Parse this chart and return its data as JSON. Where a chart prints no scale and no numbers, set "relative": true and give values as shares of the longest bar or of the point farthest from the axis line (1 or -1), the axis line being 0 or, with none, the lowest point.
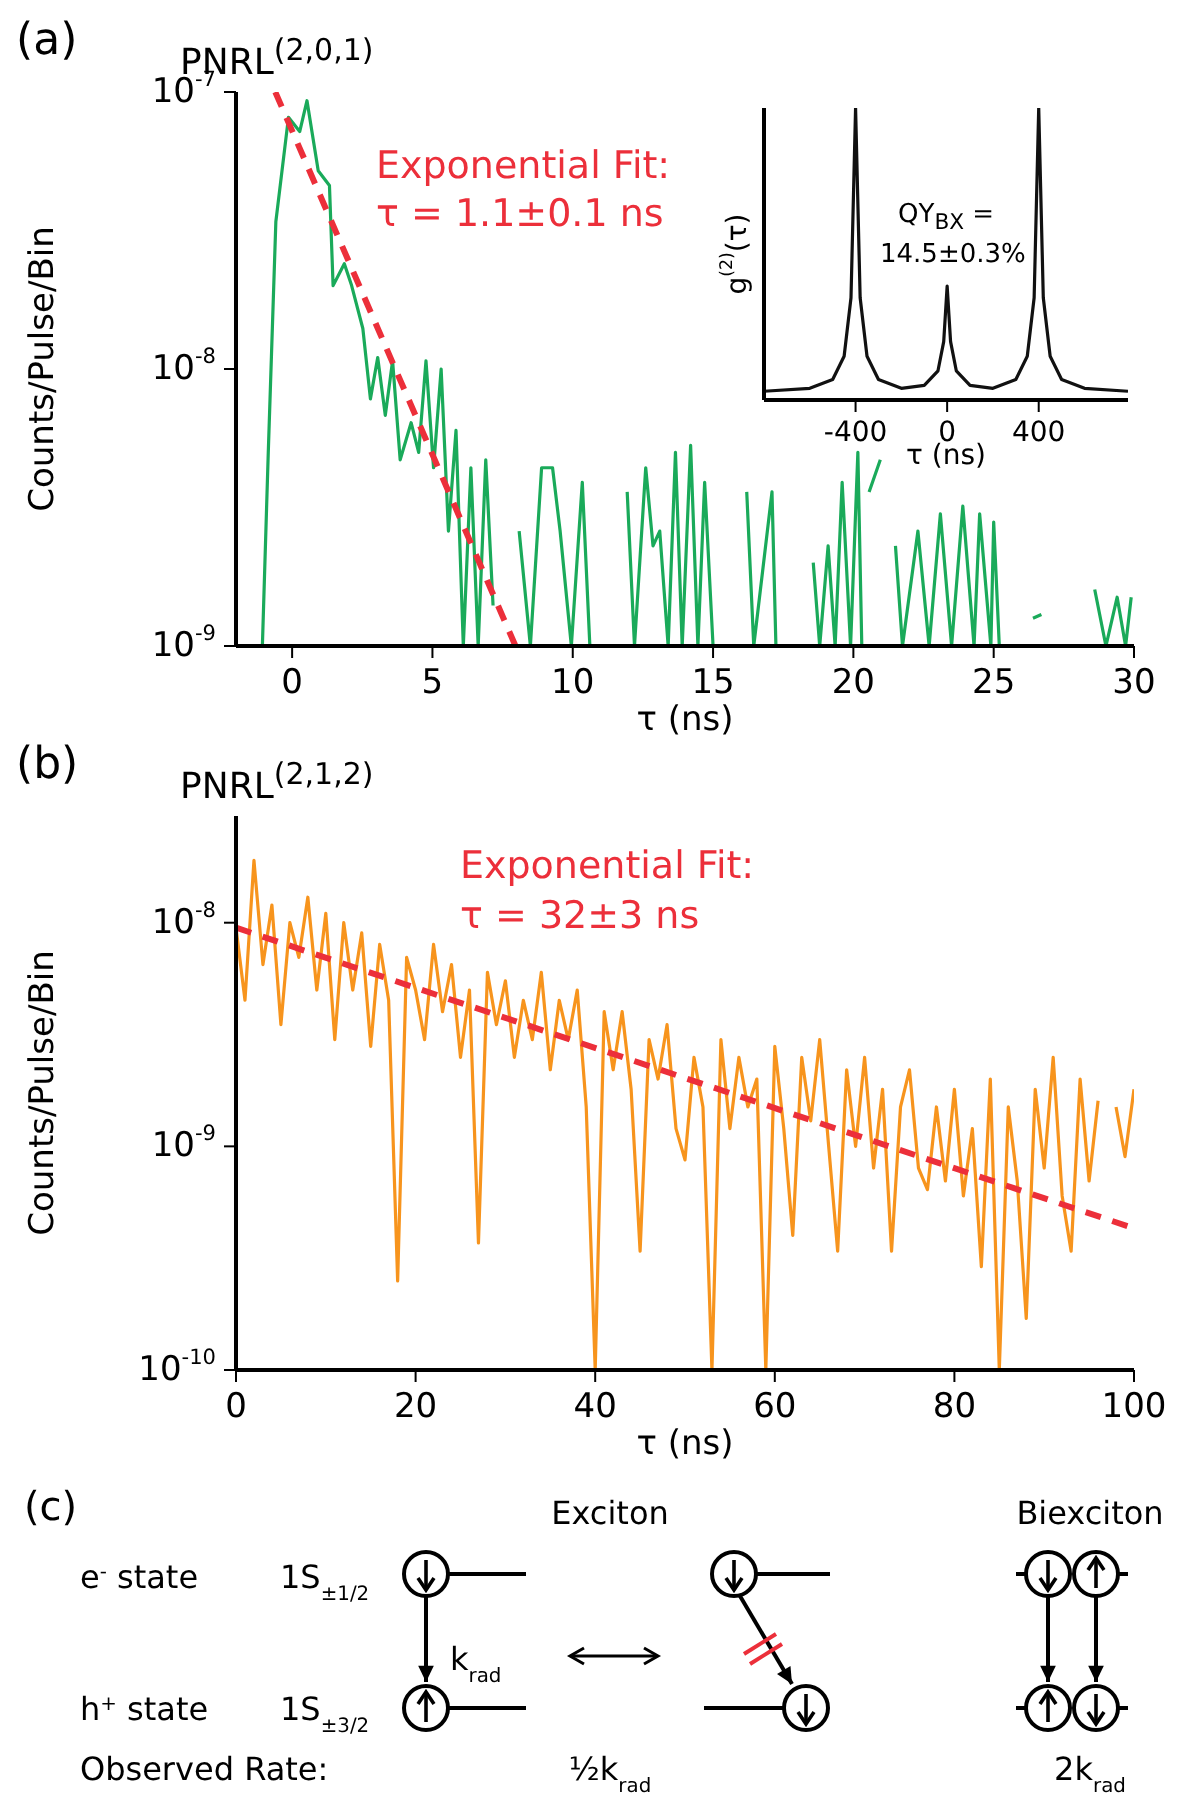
{
  "chart_data": [
    {
      "type": "line",
      "title": "PNRL$^{(2,0,1)}$",
      "xlabel": "τ (ns)",
      "ylabel": "Counts/Pulse/Bin",
      "annotations": [
        "(a)",
        "Exponential Fit:",
        "τ = 1.1±0.1 ns"
      ],
      "log": true,
      "xlim": [
        -2,
        30
      ],
      "xticks": [
        0,
        5,
        10,
        15,
        20,
        25,
        30
      ],
      "ylim": [
        1e-09,
        1e-07
      ],
      "yticks": [
        {
          "value": 1e-09,
          "label": "10$^{-9}$"
        },
        {
          "value": 1e-08,
          "label": "10$^{-8}$"
        },
        {
          "value": 1e-07,
          "label": "10$^{-7}$"
        }
      ],
      "series": [
        {
          "color": "#1aaa5a",
          "x": [
            -1.06,
            -0.85,
            -0.58,
            -0.13,
            0.27,
            0.53,
            0.93,
            1.33,
            1.46,
            1.86,
            2.12,
            2.52,
            2.79,
            3.05,
            3.32,
            3.58,
            3.85,
            4.24,
            4.51,
            4.77,
            5.04,
            5.31,
            5.57,
            5.84,
            6.1,
            6.37,
            6.63,
            6.9,
            7.16,
            7.6,
            8.09,
            8.49,
            8.89,
            9.28,
            9.55,
            9.95,
            10.34,
            10.61,
            11.3,
            11.94,
            12.2,
            12.6,
            12.86,
            13.1,
            13.4,
            13.66,
            13.9,
            14.2,
            14.46,
            14.7,
            15,
            15.6,
            16.2,
            16.45,
            17.1,
            17.24,
            17.9,
            18.57,
            18.8,
            19.1,
            19.35,
            19.6,
            19.9,
            20.16,
            20.3,
            20.45,
            20.56,
            20.96,
            21.2,
            21.5,
            21.75,
            22.3,
            22.7,
            23.1,
            23.5,
            23.9,
            24.3,
            24.5,
            24.9,
            25,
            25.2,
            25.8,
            26.4,
            26.7,
            27.6,
            28.6,
            29,
            29.4,
            29.7,
            29.9
          ],
          "values": [
            1e-09,
            5e-09,
            3.4e-08,
            8.1e-08,
            7.2e-08,
            9.3e-08,
            5.2e-08,
            4.6e-08,
            2e-08,
            2.4e-08,
            2e-08,
            1.4e-08,
            7.8e-09,
            1.1e-08,
            6.8e-09,
            1.07e-08,
            4.7e-09,
            6.4e-09,
            5e-09,
            1.07e-08,
            4.4e-09,
            1e-08,
            2.6e-09,
            6e-09,
            1e-09,
            4.4e-09,
            1e-09,
            4.7e-09,
            1.4e-09,
            null,
            2.6e-09,
            1e-09,
            4.4e-09,
            4.4e-09,
            2.6e-09,
            1e-09,
            3.9e-09,
            1e-09,
            null,
            3.6e-09,
            1e-09,
            4.4e-09,
            2.3e-09,
            2.6e-09,
            1e-09,
            5e-09,
            1e-09,
            5.3e-09,
            1e-09,
            3.9e-09,
            1e-09,
            null,
            3.6e-09,
            1e-09,
            3.6e-09,
            1e-09,
            null,
            2e-09,
            1e-09,
            2.3e-09,
            1e-09,
            3.9e-09,
            1e-09,
            5e-09,
            1e-09,
            null,
            3.6e-09,
            4.7e-09,
            null,
            2.3e-09,
            1e-09,
            2.6e-09,
            1e-09,
            3e-09,
            1e-09,
            3.2e-09,
            1e-09,
            3e-09,
            1e-09,
            2.8e-09,
            1e-09,
            null,
            1.26e-09,
            1.3e-09,
            null,
            1.6e-09,
            1e-09,
            1.5e-09,
            1e-09,
            1.5e-09
          ]
        },
        {
          "type": "line",
          "color": "#ec2f3a",
          "line_style": "dashed",
          "x": [
            -0.6,
            7.96
          ],
          "values": [
            1e-07,
            1e-09
          ]
        }
      ]
    },
    {
      "type": "line",
      "relative": true,
      "xlabel": "τ (ns)",
      "ylabel": "g$^{(2)}$(τ)",
      "annotations": [
        "QY$_{BX}$ =",
        "14.5±0.3%"
      ],
      "xlim": [
        -800,
        790
      ],
      "xticks": [
        -400,
        0,
        400
      ],
      "series": [
        {
          "color": "#111111",
          "x": [
            -800,
            -600,
            -500,
            -450,
            -420,
            -400,
            -380,
            -350,
            -300,
            -200,
            -100,
            -40,
            -15,
            0,
            15,
            40,
            100,
            200,
            300,
            350,
            380,
            400,
            420,
            450,
            500,
            600,
            790
          ],
          "values": [
            0.03,
            0.04,
            0.07,
            0.15,
            0.35,
            1,
            0.35,
            0.15,
            0.07,
            0.04,
            0.05,
            0.1,
            0.2,
            0.39,
            0.2,
            0.1,
            0.05,
            0.04,
            0.07,
            0.15,
            0.35,
            1,
            0.35,
            0.15,
            0.07,
            0.04,
            0.03
          ]
        }
      ]
    },
    {
      "type": "line",
      "title": "PNRL$^{(2,1,2)}$",
      "xlabel": "τ (ns)",
      "ylabel": "Counts/Pulse/Bin",
      "annotations": [
        "(b)",
        "Exponential Fit:",
        "τ = 32±3 ns"
      ],
      "log": true,
      "xlim": [
        0,
        100
      ],
      "xticks": [
        0,
        20,
        40,
        60,
        80,
        100
      ],
      "ylim": [
        1e-10,
        3e-08
      ],
      "yticks": [
        {
          "value": 1e-10,
          "label": "10$^{-10}$"
        },
        {
          "value": 1e-09,
          "label": "10$^{-9}$"
        },
        {
          "value": 1e-08,
          "label": "10$^{-8}$"
        }
      ],
      "series": [
        {
          "color": "#f7941d",
          "x": [
            0,
            1,
            2,
            3,
            4,
            5,
            6,
            7,
            8,
            9,
            10,
            11,
            12,
            13,
            14,
            15,
            16,
            17,
            18,
            19,
            20,
            21,
            22,
            23,
            24,
            25,
            26,
            27,
            28,
            29,
            30,
            31,
            32,
            33,
            34,
            35,
            36,
            37,
            38,
            39,
            40,
            41,
            42,
            43,
            44,
            45,
            46,
            47,
            48,
            49,
            50,
            51,
            52,
            53,
            54,
            55,
            56,
            57,
            58,
            59,
            60,
            61,
            62,
            63,
            64,
            65,
            66,
            67,
            68,
            69,
            70,
            71,
            72,
            73,
            74,
            75,
            76,
            77,
            78,
            79,
            80,
            81,
            82,
            83,
            84,
            85,
            86,
            87,
            88,
            89,
            90,
            91,
            92,
            93,
            94,
            95,
            96,
            97,
            98,
            99,
            100
          ],
          "values": [
            9.5e-09,
            4.5e-09,
            1.9e-08,
            6.5e-09,
            1.2e-08,
            3.5e-09,
            1e-08,
            7e-09,
            1.3e-08,
            5e-09,
            1.1e-08,
            3e-09,
            1e-08,
            5e-09,
            9e-09,
            2.8e-09,
            8e-09,
            4.5e-09,
            2.5e-10,
            7e-09,
            5e-09,
            3e-09,
            8e-09,
            4e-09,
            6.5e-09,
            2.5e-09,
            5e-09,
            3.7e-10,
            6e-09,
            3.5e-09,
            5.5e-09,
            2.5e-09,
            4.5e-09,
            3e-09,
            6e-09,
            2.2e-09,
            4.5e-09,
            3e-09,
            5e-09,
            1.5e-09,
            1e-10,
            4e-09,
            2.2e-09,
            4e-09,
            1.8e-09,
            3.4e-10,
            3e-09,
            2e-09,
            3.5e-09,
            1.2e-09,
            8.7e-10,
            2.5e-09,
            1.5e-09,
            1e-10,
            3e-09,
            1.2e-09,
            2.5e-09,
            1.5e-09,
            2e-09,
            1e-10,
            2.8e-09,
            1.2e-09,
            4e-10,
            2.5e-09,
            1.3e-09,
            3e-09,
            1e-09,
            3.4e-10,
            2.2e-09,
            1e-09,
            2.5e-09,
            8e-10,
            1.8e-09,
            3.4e-10,
            1.5e-09,
            2.2e-09,
            8e-10,
            6.4e-10,
            1.5e-09,
            7e-10,
            1.8e-09,
            6e-10,
            1.2e-09,
            2.9e-10,
            2e-09,
            1e-10,
            1.5e-09,
            7e-10,
            1.7e-10,
            1.8e-09,
            8e-10,
            2.5e-09,
            6e-10,
            3.4e-10,
            2e-09,
            7e-10,
            1.6e-09,
            null,
            1.5e-09,
            9e-10,
            1.8e-09
          ]
        },
        {
          "type": "line",
          "color": "#ec2f3a",
          "line_style": "dashed",
          "x": [
            0,
            100
          ],
          "values": [
            9.5e-09,
            4.3e-10
          ]
        }
      ]
    },
    {
      "type": "other",
      "annotations": [
        "(c)",
        "Exciton",
        "Biexciton",
        "e$^{-}$ state",
        "1S$_{±1/2}$",
        "k$_{rad}$",
        "h$^{+}$ state",
        "1S$_{±3/2}$",
        "Observed Rate:",
        "½k$_{rad}$",
        "2k$_{rad}$"
      ]
    }
  ]
}
